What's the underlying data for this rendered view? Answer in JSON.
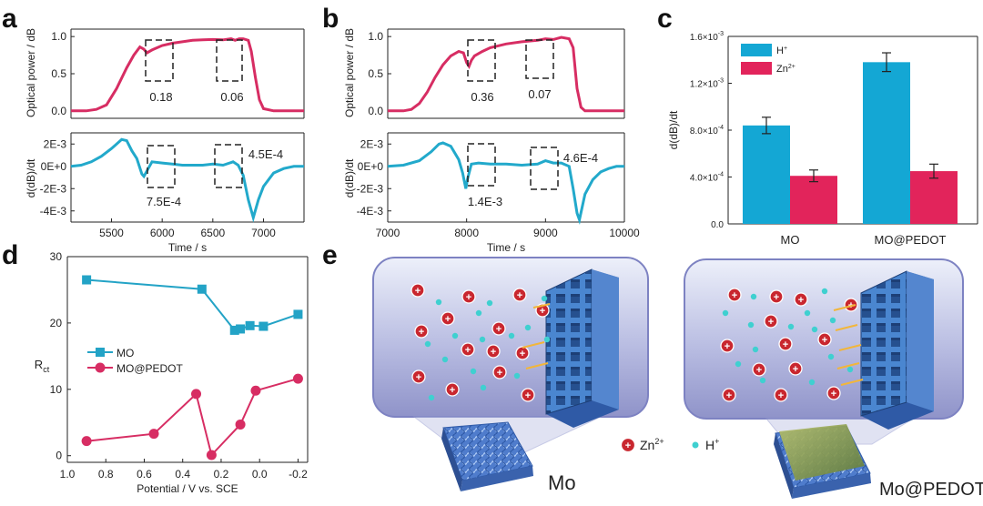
{
  "panel_letters": {
    "a": "a",
    "b": "b",
    "c": "c",
    "d": "d",
    "e": "e"
  },
  "colors": {
    "red": "#d72d63",
    "cyan": "#22a9cb",
    "mo_blue": "#23a3c6",
    "bar_cyan": "#14a7d4",
    "bar_red": "#e2245b"
  },
  "chart_data": [
    {
      "id": "a_top",
      "type": "line",
      "title": "",
      "ylabel": "Optical power / dB",
      "xlim": [
        5100,
        7400
      ],
      "ylim": [
        -0.1,
        1.1
      ],
      "yticks": [
        0.0,
        0.5,
        1.0
      ],
      "ytick_labels": [
        "0.0",
        "0.5",
        "1.0"
      ],
      "x": [
        5100,
        5250,
        5350,
        5450,
        5550,
        5650,
        5720,
        5780,
        5820,
        5850,
        5900,
        6000,
        6100,
        6200,
        6300,
        6400,
        6500,
        6600,
        6680,
        6720,
        6760,
        6800,
        6850,
        6880,
        6920,
        6960,
        7000,
        7100,
        7200,
        7300,
        7400
      ],
      "y": [
        0,
        0,
        0.02,
        0.08,
        0.3,
        0.58,
        0.75,
        0.86,
        0.83,
        0.78,
        0.82,
        0.88,
        0.91,
        0.93,
        0.95,
        0.955,
        0.96,
        0.955,
        0.97,
        0.95,
        0.97,
        0.97,
        0.95,
        0.8,
        0.45,
        0.15,
        0.03,
        0,
        0,
        0,
        0
      ],
      "annotations": [
        {
          "label": "0.18"
        },
        {
          "label": "0.06"
        }
      ]
    },
    {
      "id": "a_bottom",
      "type": "line",
      "xlabel": "Time / s",
      "ylabel": "d(dB)/dt",
      "xlim": [
        5100,
        7400
      ],
      "ylim": [
        -0.005,
        0.003
      ],
      "xticks": [
        5500,
        6000,
        6500,
        7000
      ],
      "xtick_labels": [
        "5500",
        "6000",
        "6500",
        "7000"
      ],
      "yticks": [
        0.002,
        0,
        -0.002,
        -0.004
      ],
      "ytick_labels": [
        "2E-3",
        "0E+0",
        "-2E-3",
        "-4E-3"
      ],
      "x": [
        5100,
        5200,
        5300,
        5400,
        5500,
        5600,
        5650,
        5700,
        5750,
        5800,
        5820,
        5850,
        5900,
        6000,
        6100,
        6200,
        6300,
        6400,
        6500,
        6600,
        6700,
        6750,
        6800,
        6850,
        6900,
        6950,
        7000,
        7100,
        7200,
        7300,
        7400
      ],
      "y": [
        0,
        0.0001,
        0.0004,
        0.0009,
        0.0016,
        0.0024,
        0.0023,
        0.0014,
        0.0007,
        -0.0007,
        -0.0009,
        -0.0004,
        0.0004,
        0.0003,
        0.0002,
        0.0001,
        0.0001,
        0.0001,
        0.0002,
        0.0001,
        0.0004,
        0.0001,
        -0.0008,
        -0.003,
        -0.0046,
        -0.003,
        -0.0018,
        -0.0006,
        -0.0002,
        0,
        0
      ],
      "annotations": [
        {
          "label": "7.5E-4"
        },
        {
          "label": "4.5E-4"
        }
      ]
    },
    {
      "id": "b_top",
      "type": "line",
      "ylabel": "Optical power / dB",
      "xlim": [
        7000,
        10000
      ],
      "ylim": [
        -0.1,
        1.1
      ],
      "yticks": [
        0.0,
        0.5,
        1.0
      ],
      "ytick_labels": [
        "0.0",
        "0.5",
        "1.0"
      ],
      "x": [
        7000,
        7200,
        7300,
        7400,
        7500,
        7600,
        7700,
        7800,
        7900,
        7960,
        8000,
        8030,
        8060,
        8100,
        8200,
        8300,
        8500,
        8700,
        8900,
        9000,
        9100,
        9200,
        9300,
        9350,
        9400,
        9450,
        9500,
        9600,
        9800,
        10000
      ],
      "y": [
        0,
        0,
        0.02,
        0.1,
        0.25,
        0.45,
        0.62,
        0.74,
        0.8,
        0.78,
        0.65,
        0.6,
        0.68,
        0.74,
        0.8,
        0.85,
        0.9,
        0.93,
        0.95,
        0.97,
        0.96,
        0.99,
        0.97,
        0.85,
        0.3,
        0.05,
        0,
        0,
        0,
        0
      ],
      "annotations": [
        {
          "label": "0.36"
        },
        {
          "label": "0.07"
        }
      ]
    },
    {
      "id": "b_bottom",
      "type": "line",
      "xlabel": "Time / s",
      "ylabel": "d(dB)/dt",
      "xlim": [
        7000,
        10000
      ],
      "ylim": [
        -0.005,
        0.003
      ],
      "xticks": [
        7000,
        8000,
        9000,
        10000
      ],
      "xtick_labels": [
        "7000",
        "8000",
        "9000",
        "10000"
      ],
      "yticks": [
        0.002,
        0,
        -0.002,
        -0.004
      ],
      "ytick_labels": [
        "2E-3",
        "0E+0",
        "-2E-3",
        "-4E-3"
      ],
      "x": [
        7000,
        7200,
        7400,
        7550,
        7650,
        7700,
        7800,
        7900,
        7950,
        7990,
        8010,
        8060,
        8150,
        8300,
        8500,
        8700,
        8900,
        9000,
        9100,
        9200,
        9300,
        9350,
        9400,
        9430,
        9500,
        9600,
        9700,
        9800,
        9900,
        10000
      ],
      "y": [
        0,
        0.0001,
        0.0005,
        0.0013,
        0.002,
        0.0021,
        0.0018,
        0.0006,
        -0.0006,
        -0.002,
        -0.0012,
        0.0002,
        0.0003,
        0.0002,
        0.0002,
        0.0001,
        0.0002,
        0.0005,
        0.0003,
        0.0003,
        0,
        -0.002,
        -0.0042,
        -0.0048,
        -0.0025,
        -0.0012,
        -0.0005,
        -0.0002,
        0,
        0
      ],
      "annotations": [
        {
          "label": "1.4E-3"
        },
        {
          "label": "4.6E-4"
        }
      ]
    },
    {
      "id": "c",
      "type": "bar",
      "ylabel": "d(dB)/dt",
      "categories": [
        "MO",
        "MO@PEDOT"
      ],
      "series": [
        {
          "name": "H",
          "superscript": "+",
          "values": [
            0.00084,
            0.00138
          ],
          "errors": [
            7e-05,
            8e-05
          ]
        },
        {
          "name": "Zn",
          "superscript": "2+",
          "values": [
            0.00041,
            0.00045
          ],
          "errors": [
            5e-05,
            6e-05
          ]
        }
      ],
      "ylim": [
        0,
        0.0016
      ],
      "yticks": [
        0,
        0.0004,
        0.0008,
        0.0012,
        0.0016
      ],
      "ytick_labels": [
        {
          "m": "0.0",
          "e": ""
        },
        {
          "m": "4.0×10",
          "e": "-4"
        },
        {
          "m": "8.0×10",
          "e": "-4"
        },
        {
          "m": "1.2×10",
          "e": "-3"
        },
        {
          "m": "1.6×10",
          "e": "-3"
        }
      ]
    },
    {
      "id": "d",
      "type": "line",
      "xlabel": "Potential / V vs. SCE",
      "ylabel": "R",
      "ylabel_sub": "ct",
      "xlim": [
        1.0,
        -0.25
      ],
      "ylim": [
        -1,
        30
      ],
      "xticks": [
        1.0,
        0.8,
        0.6,
        0.4,
        0.2,
        0.0,
        -0.2
      ],
      "xtick_labels": [
        "1.0",
        "0.8",
        "0.6",
        "0.4",
        "0.2",
        "0.0",
        "-0.2"
      ],
      "yticks": [
        0,
        10,
        20,
        30
      ],
      "ytick_labels": [
        "0",
        "10",
        "20",
        "30"
      ],
      "series": [
        {
          "name": "MO",
          "x": [
            0.9,
            0.3,
            0.13,
            0.1,
            0.05,
            -0.02,
            -0.2
          ],
          "y": [
            26.5,
            25.1,
            18.9,
            19.1,
            19.6,
            19.5,
            21.3
          ]
        },
        {
          "name": "MO@PEDOT",
          "x": [
            0.9,
            0.55,
            0.33,
            0.25,
            0.1,
            0.02,
            -0.2
          ],
          "y": [
            2.2,
            3.3,
            9.3,
            0.1,
            4.7,
            9.8,
            11.6
          ]
        }
      ]
    }
  ],
  "panel_e": {
    "legend_zn": "Zn",
    "legend_zn_sup": "2+",
    "legend_h": "H",
    "legend_h_sup": "+",
    "label_left": "Mo",
    "label_right": "Mo@PEDOT"
  }
}
